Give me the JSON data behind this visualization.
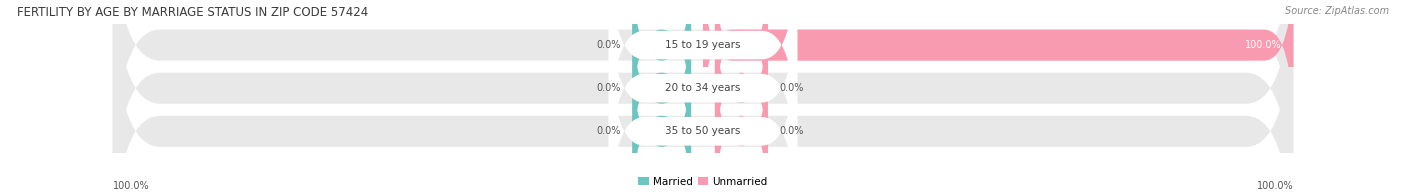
{
  "title": "FERTILITY BY AGE BY MARRIAGE STATUS IN ZIP CODE 57424",
  "source": "Source: ZipAtlas.com",
  "rows": [
    {
      "label": "15 to 19 years",
      "married": 0.0,
      "unmarried": 100.0
    },
    {
      "label": "20 to 34 years",
      "married": 0.0,
      "unmarried": 0.0
    },
    {
      "label": "35 to 50 years",
      "married": 0.0,
      "unmarried": 0.0
    }
  ],
  "married_color": "#6DC5C1",
  "unmarried_color": "#F89AB0",
  "bar_bg_color": "#E8E8E8",
  "title_fontsize": 8.5,
  "label_fontsize": 7.5,
  "tick_fontsize": 7.0,
  "source_fontsize": 7.0,
  "left_label": "100.0%",
  "right_label": "100.0%",
  "married_legend": "Married",
  "unmarried_legend": "Unmarried"
}
